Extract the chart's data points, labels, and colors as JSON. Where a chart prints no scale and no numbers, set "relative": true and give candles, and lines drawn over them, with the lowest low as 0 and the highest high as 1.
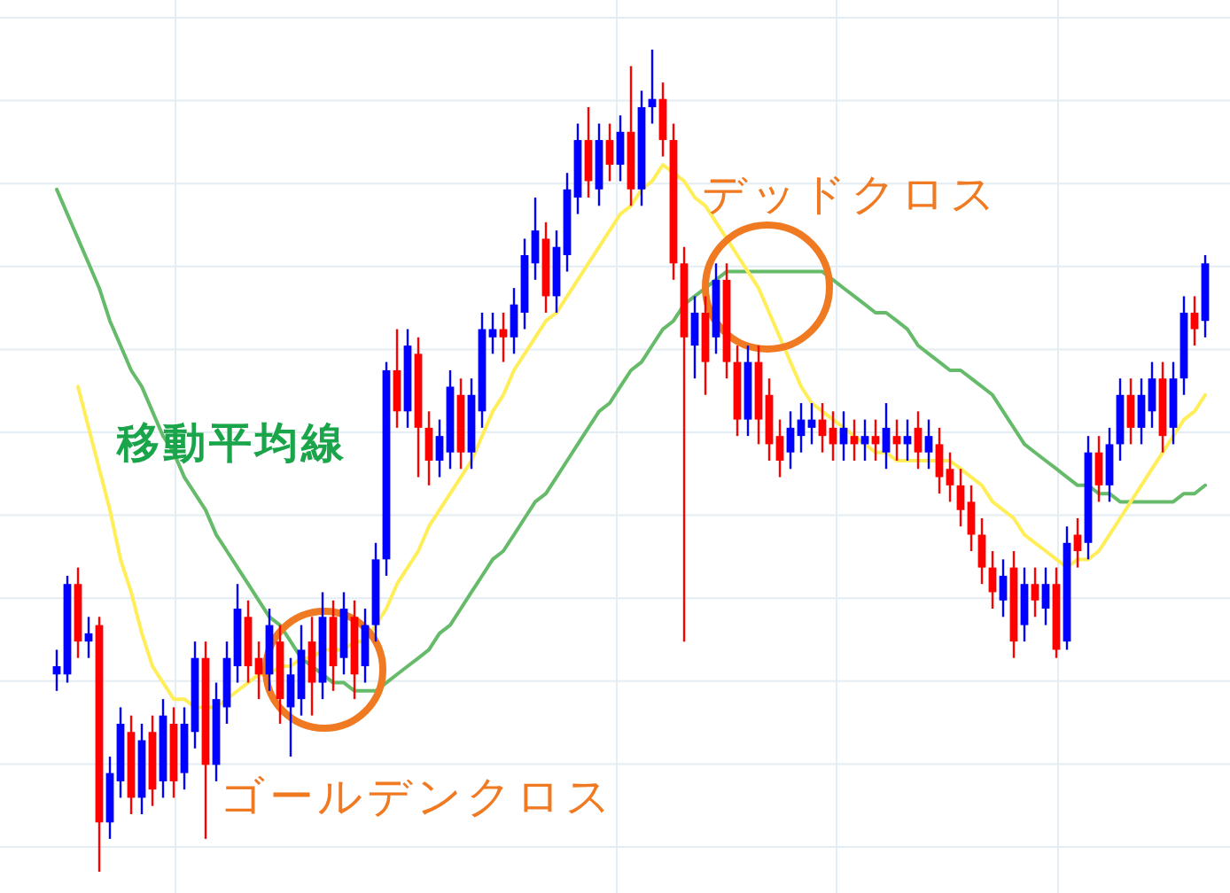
{
  "chart_data": {
    "type": "candlestick",
    "relative": true,
    "grid": true,
    "categories": [
      null,
      null,
      null,
      null,
      null,
      null,
      null,
      null,
      null,
      null,
      null,
      null,
      null,
      null,
      null,
      null,
      null,
      null,
      null,
      null,
      null,
      null,
      null,
      null,
      null,
      null,
      null,
      null,
      null,
      null,
      null,
      null,
      null,
      null,
      null,
      null,
      null,
      null,
      null,
      null,
      null,
      null,
      null,
      null,
      null,
      null,
      null,
      null,
      null,
      null,
      null,
      null,
      null,
      null,
      null,
      null,
      null,
      null,
      null,
      null,
      null,
      null,
      null,
      null,
      null,
      null,
      null,
      null,
      null,
      null,
      null,
      null,
      null,
      null,
      null,
      null,
      null,
      null,
      null,
      null,
      null,
      null,
      null,
      null,
      null,
      null,
      null,
      null,
      null,
      null,
      null,
      null,
      null,
      null,
      null,
      null,
      null,
      null,
      null,
      null,
      null,
      null,
      null,
      null,
      null,
      null,
      null,
      null,
      null
    ],
    "ohlc": [
      [
        0.24,
        0.27,
        0.22,
        0.25
      ],
      [
        0.24,
        0.36,
        0.23,
        0.35
      ],
      [
        0.35,
        0.37,
        0.26,
        0.28
      ],
      [
        0.28,
        0.31,
        0.26,
        0.29
      ],
      [
        0.3,
        0.31,
        0,
        0.06
      ],
      [
        0.06,
        0.14,
        0.04,
        0.12
      ],
      [
        0.11,
        0.2,
        0.09,
        0.18
      ],
      [
        0.17,
        0.19,
        0.07,
        0.09
      ],
      [
        0.09,
        0.18,
        0.07,
        0.16
      ],
      [
        0.17,
        0.19,
        0.08,
        0.1
      ],
      [
        0.11,
        0.21,
        0.09,
        0.19
      ],
      [
        0.18,
        0.2,
        0.09,
        0.11
      ],
      [
        0.12,
        0.2,
        0.1,
        0.18
      ],
      [
        0.17,
        0.28,
        0.15,
        0.26
      ],
      [
        0.26,
        0.28,
        0.04,
        0.13
      ],
      [
        0.13,
        0.23,
        0.11,
        0.21
      ],
      [
        0.2,
        0.28,
        0.18,
        0.26
      ],
      [
        0.25,
        0.35,
        0.23,
        0.32
      ],
      [
        0.31,
        0.33,
        0.23,
        0.25
      ],
      [
        0.26,
        0.28,
        0.21,
        0.24
      ],
      [
        0.24,
        0.32,
        0.22,
        0.3
      ],
      [
        0.28,
        0.3,
        0.18,
        0.21
      ],
      [
        0.2,
        0.26,
        0.14,
        0.24
      ],
      [
        0.21,
        0.3,
        0.19,
        0.27
      ],
      [
        0.28,
        0.31,
        0.19,
        0.23
      ],
      [
        0.23,
        0.34,
        0.21,
        0.31
      ],
      [
        0.31,
        0.33,
        0.22,
        0.25
      ],
      [
        0.26,
        0.34,
        0.24,
        0.32
      ],
      [
        0.31,
        0.33,
        0.21,
        0.24
      ],
      [
        0.25,
        0.32,
        0.23,
        0.3
      ],
      [
        0.3,
        0.4,
        0.28,
        0.38
      ],
      [
        0.38,
        0.62,
        0.36,
        0.61
      ],
      [
        0.61,
        0.66,
        0.54,
        0.56
      ],
      [
        0.56,
        0.66,
        0.54,
        0.64
      ],
      [
        0.63,
        0.65,
        0.48,
        0.54
      ],
      [
        0.54,
        0.56,
        0.47,
        0.5
      ],
      [
        0.5,
        0.55,
        0.48,
        0.53
      ],
      [
        0.51,
        0.61,
        0.49,
        0.59
      ],
      [
        0.58,
        0.6,
        0.49,
        0.51
      ],
      [
        0.51,
        0.6,
        0.49,
        0.58
      ],
      [
        0.56,
        0.68,
        0.54,
        0.66
      ],
      [
        0.65,
        0.68,
        0.63,
        0.66
      ],
      [
        0.66,
        0.68,
        0.62,
        0.65
      ],
      [
        0.65,
        0.71,
        0.63,
        0.69
      ],
      [
        0.68,
        0.77,
        0.66,
        0.75
      ],
      [
        0.74,
        0.82,
        0.72,
        0.78
      ],
      [
        0.77,
        0.79,
        0.68,
        0.7
      ],
      [
        0.7,
        0.78,
        0.68,
        0.76
      ],
      [
        0.75,
        0.85,
        0.73,
        0.83
      ],
      [
        0.82,
        0.91,
        0.8,
        0.89
      ],
      [
        0.89,
        0.93,
        0.82,
        0.84
      ],
      [
        0.83,
        0.91,
        0.81,
        0.89
      ],
      [
        0.89,
        0.91,
        0.84,
        0.86
      ],
      [
        0.86,
        0.92,
        0.84,
        0.9
      ],
      [
        0.9,
        0.98,
        0.81,
        0.83
      ],
      [
        0.83,
        0.95,
        0.81,
        0.93
      ],
      [
        0.93,
        1,
        0.91,
        0.94
      ],
      [
        0.94,
        0.96,
        0.87,
        0.89
      ],
      [
        0.89,
        0.91,
        0.72,
        0.74
      ],
      [
        0.74,
        0.76,
        0.28,
        0.65
      ],
      [
        0.64,
        0.7,
        0.6,
        0.68
      ],
      [
        0.68,
        0.7,
        0.58,
        0.62
      ],
      [
        0.65,
        0.74,
        0.63,
        0.72
      ],
      [
        0.72,
        0.74,
        0.6,
        0.62
      ],
      [
        0.62,
        0.64,
        0.53,
        0.55
      ],
      [
        0.55,
        0.64,
        0.53,
        0.62
      ],
      [
        0.62,
        0.64,
        0.52,
        0.55
      ],
      [
        0.58,
        0.6,
        0.5,
        0.52
      ],
      [
        0.53,
        0.55,
        0.48,
        0.5
      ],
      [
        0.51,
        0.56,
        0.49,
        0.54
      ],
      [
        0.53,
        0.57,
        0.51,
        0.55
      ],
      [
        0.54,
        0.57,
        0.52,
        0.55
      ],
      [
        0.55,
        0.57,
        0.51,
        0.53
      ],
      [
        0.54,
        0.56,
        0.5,
        0.52
      ],
      [
        0.52,
        0.56,
        0.5,
        0.54
      ],
      [
        0.53,
        0.55,
        0.5,
        0.52
      ],
      [
        0.52,
        0.55,
        0.5,
        0.53
      ],
      [
        0.53,
        0.55,
        0.5,
        0.52
      ],
      [
        0.51,
        0.57,
        0.49,
        0.54
      ],
      [
        0.53,
        0.55,
        0.5,
        0.52
      ],
      [
        0.52,
        0.55,
        0.5,
        0.53
      ],
      [
        0.54,
        0.56,
        0.49,
        0.51
      ],
      [
        0.51,
        0.55,
        0.49,
        0.53
      ],
      [
        0.52,
        0.54,
        0.46,
        0.48
      ],
      [
        0.49,
        0.51,
        0.45,
        0.47
      ],
      [
        0.47,
        0.49,
        0.42,
        0.44
      ],
      [
        0.45,
        0.47,
        0.39,
        0.41
      ],
      [
        0.41,
        0.43,
        0.35,
        0.37
      ],
      [
        0.37,
        0.39,
        0.32,
        0.34
      ],
      [
        0.33,
        0.38,
        0.31,
        0.36
      ],
      [
        0.37,
        0.39,
        0.26,
        0.28
      ],
      [
        0.3,
        0.37,
        0.28,
        0.35
      ],
      [
        0.35,
        0.37,
        0.31,
        0.33
      ],
      [
        0.32,
        0.37,
        0.3,
        0.35
      ],
      [
        0.35,
        0.37,
        0.26,
        0.27
      ],
      [
        0.28,
        0.42,
        0.27,
        0.4
      ],
      [
        0.41,
        0.43,
        0.37,
        0.39
      ],
      [
        0.4,
        0.53,
        0.38,
        0.51
      ],
      [
        0.51,
        0.53,
        0.45,
        0.47
      ],
      [
        0.47,
        0.54,
        0.45,
        0.52
      ],
      [
        0.52,
        0.6,
        0.5,
        0.58
      ],
      [
        0.58,
        0.6,
        0.52,
        0.54
      ],
      [
        0.54,
        0.6,
        0.52,
        0.58
      ],
      [
        0.56,
        0.62,
        0.54,
        0.6
      ],
      [
        0.6,
        0.62,
        0.51,
        0.53
      ],
      [
        0.54,
        0.62,
        0.52,
        0.6
      ],
      [
        0.6,
        0.7,
        0.58,
        0.68
      ],
      [
        0.68,
        0.7,
        0.64,
        0.66
      ],
      [
        0.67,
        0.75,
        0.65,
        0.74
      ]
    ],
    "series": [
      {
        "type": "line",
        "color": "#66bb6a",
        "values": [
          0.83,
          0.8,
          0.77,
          0.74,
          0.71,
          0.67,
          0.64,
          0.61,
          0.59,
          0.56,
          0.53,
          0.51,
          0.48,
          0.46,
          0.44,
          0.41,
          0.39,
          0.37,
          0.35,
          0.33,
          0.31,
          0.3,
          0.28,
          0.26,
          0.25,
          0.24,
          0.23,
          0.23,
          0.22,
          0.22,
          0.22,
          0.23,
          0.24,
          0.25,
          0.26,
          0.27,
          0.29,
          0.3,
          0.32,
          0.34,
          0.36,
          0.38,
          0.39,
          0.41,
          0.43,
          0.45,
          0.46,
          0.48,
          0.5,
          0.52,
          0.54,
          0.56,
          0.57,
          0.59,
          0.61,
          0.62,
          0.64,
          0.66,
          0.67,
          0.69,
          0.7,
          0.71,
          0.72,
          0.73,
          0.73,
          0.73,
          0.73,
          0.73,
          0.73,
          0.73,
          0.73,
          0.73,
          0.73,
          0.72,
          0.71,
          0.7,
          0.69,
          0.68,
          0.68,
          0.67,
          0.66,
          0.64,
          0.63,
          0.62,
          0.61,
          0.61,
          0.6,
          0.59,
          0.58,
          0.56,
          0.54,
          0.52,
          0.51,
          0.5,
          0.49,
          0.48,
          0.47,
          0.47,
          0.46,
          0.46,
          0.45,
          0.45,
          0.45,
          0.45,
          0.45,
          0.45,
          0.46,
          0.46,
          0.47
        ]
      },
      {
        "type": "line",
        "color": "#ffee58",
        "values": [
          null,
          null,
          0.59,
          0.54,
          0.49,
          0.44,
          0.38,
          0.34,
          0.29,
          0.25,
          0.23,
          0.21,
          0.21,
          0.2,
          0.2,
          0.2,
          0.21,
          0.22,
          0.23,
          0.24,
          0.24,
          0.25,
          0.25,
          0.26,
          0.26,
          0.27,
          0.27,
          0.27,
          0.28,
          0.28,
          0.3,
          0.32,
          0.35,
          0.37,
          0.39,
          0.42,
          0.44,
          0.46,
          0.48,
          0.5,
          0.53,
          0.56,
          0.58,
          0.61,
          0.63,
          0.65,
          0.67,
          0.68,
          0.7,
          0.72,
          0.74,
          0.76,
          0.78,
          0.8,
          0.81,
          0.83,
          0.84,
          0.86,
          0.85,
          0.84,
          0.82,
          0.81,
          0.79,
          0.77,
          0.75,
          0.73,
          0.71,
          0.68,
          0.65,
          0.62,
          0.59,
          0.57,
          0.56,
          0.55,
          0.54,
          0.53,
          0.52,
          0.51,
          0.51,
          0.5,
          0.5,
          0.5,
          0.5,
          0.5,
          0.5,
          0.49,
          0.48,
          0.47,
          0.45,
          0.44,
          0.43,
          0.41,
          0.4,
          0.39,
          0.38,
          0.37,
          0.38,
          0.38,
          0.39,
          0.41,
          0.43,
          0.45,
          0.47,
          0.49,
          0.51,
          0.53,
          0.55,
          0.56,
          0.58
        ]
      }
    ],
    "annotations": [
      "移動平均線",
      "デッドクロス",
      "ゴールデンクロス"
    ]
  }
}
